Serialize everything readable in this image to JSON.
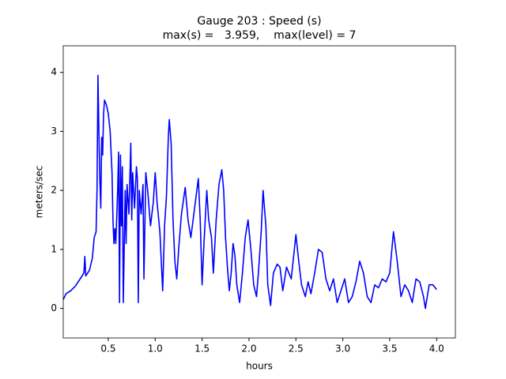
{
  "chart_data": {
    "type": "line",
    "title": "Gauge 203 : Speed (s)",
    "subtitle": "max(s) =   3.959,    max(level) = 7",
    "x_label": "hours",
    "y_label": "meters/sec",
    "xlim": [
      0.02,
      4.2
    ],
    "ylim": [
      -0.5,
      4.45
    ],
    "xticks": [
      0.5,
      {
        "value": 1,
        "label": "1.0"
      },
      1.5,
      {
        "value": 2,
        "label": "2.0"
      },
      2.5,
      {
        "value": 3,
        "label": "3.0"
      },
      3.5,
      {
        "value": 4,
        "label": "4.0"
      }
    ],
    "yticks": [
      0,
      1,
      2,
      3,
      4
    ],
    "grid": false,
    "x": [
      0.02,
      0.05,
      0.1,
      0.15,
      0.2,
      0.24,
      0.25,
      0.26,
      0.3,
      0.33,
      0.35,
      0.37,
      0.38,
      0.39,
      0.4,
      0.41,
      0.42,
      0.43,
      0.44,
      0.45,
      0.46,
      0.48,
      0.5,
      0.52,
      0.54,
      0.55,
      0.56,
      0.57,
      0.58,
      0.6,
      0.61,
      0.62,
      0.63,
      0.64,
      0.65,
      0.66,
      0.68,
      0.69,
      0.7,
      0.72,
      0.74,
      0.75,
      0.76,
      0.78,
      0.8,
      0.81,
      0.82,
      0.83,
      0.85,
      0.87,
      0.88,
      0.9,
      0.92,
      0.95,
      0.98,
      1.0,
      1.02,
      1.05,
      1.08,
      1.1,
      1.12,
      1.14,
      1.15,
      1.17,
      1.19,
      1.21,
      1.23,
      1.25,
      1.28,
      1.32,
      1.35,
      1.38,
      1.42,
      1.46,
      1.48,
      1.5,
      1.52,
      1.55,
      1.57,
      1.6,
      1.62,
      1.65,
      1.68,
      1.71,
      1.73,
      1.75,
      1.77,
      1.79,
      1.81,
      1.83,
      1.85,
      1.87,
      1.9,
      1.93,
      1.96,
      1.99,
      2.02,
      2.05,
      2.08,
      2.1,
      2.13,
      2.15,
      2.18,
      2.2,
      2.23,
      2.26,
      2.3,
      2.33,
      2.36,
      2.4,
      2.45,
      2.5,
      2.53,
      2.56,
      2.6,
      2.63,
      2.66,
      2.7,
      2.74,
      2.78,
      2.82,
      2.86,
      2.9,
      2.94,
      2.98,
      3.02,
      3.06,
      3.1,
      3.14,
      3.18,
      3.22,
      3.26,
      3.3,
      3.34,
      3.38,
      3.42,
      3.46,
      3.5,
      3.54,
      3.58,
      3.62,
      3.66,
      3.7,
      3.74,
      3.78,
      3.82,
      3.86,
      3.88,
      3.92,
      3.96,
      4.0
    ],
    "series": [
      {
        "color": "#0000ff",
        "values": [
          0.15,
          0.25,
          0.3,
          0.38,
          0.5,
          0.6,
          0.88,
          0.55,
          0.65,
          0.85,
          1.2,
          1.3,
          2.0,
          3.95,
          3.0,
          2.2,
          1.7,
          2.9,
          2.6,
          3.3,
          3.53,
          3.45,
          3.3,
          3.0,
          2.3,
          1.5,
          1.1,
          1.35,
          1.1,
          2.0,
          2.65,
          0.1,
          2.6,
          1.4,
          2.4,
          0.1,
          2.0,
          1.1,
          2.1,
          1.6,
          2.8,
          1.5,
          2.3,
          1.7,
          2.4,
          2.2,
          0.1,
          2.0,
          1.6,
          2.1,
          0.5,
          2.3,
          2.0,
          1.4,
          1.8,
          2.3,
          1.8,
          1.3,
          0.3,
          1.4,
          1.9,
          2.9,
          3.2,
          2.8,
          1.5,
          0.8,
          0.5,
          1.0,
          1.6,
          2.05,
          1.5,
          1.2,
          1.7,
          2.2,
          1.5,
          0.4,
          1.1,
          2.0,
          1.5,
          1.2,
          0.6,
          1.5,
          2.1,
          2.35,
          2.0,
          1.2,
          0.7,
          0.3,
          0.6,
          1.1,
          0.9,
          0.4,
          0.1,
          0.6,
          1.2,
          1.5,
          1.0,
          0.4,
          0.2,
          0.6,
          1.3,
          2.0,
          1.4,
          0.4,
          0.05,
          0.6,
          0.75,
          0.7,
          0.3,
          0.7,
          0.5,
          1.25,
          0.8,
          0.4,
          0.2,
          0.45,
          0.25,
          0.6,
          1.0,
          0.95,
          0.5,
          0.3,
          0.5,
          0.1,
          0.3,
          0.5,
          0.1,
          0.2,
          0.45,
          0.8,
          0.6,
          0.2,
          0.1,
          0.4,
          0.35,
          0.5,
          0.45,
          0.6,
          1.3,
          0.8,
          0.2,
          0.4,
          0.3,
          0.1,
          0.5,
          0.45,
          0.2,
          0.0,
          0.4,
          0.4,
          0.32
        ]
      }
    ]
  }
}
